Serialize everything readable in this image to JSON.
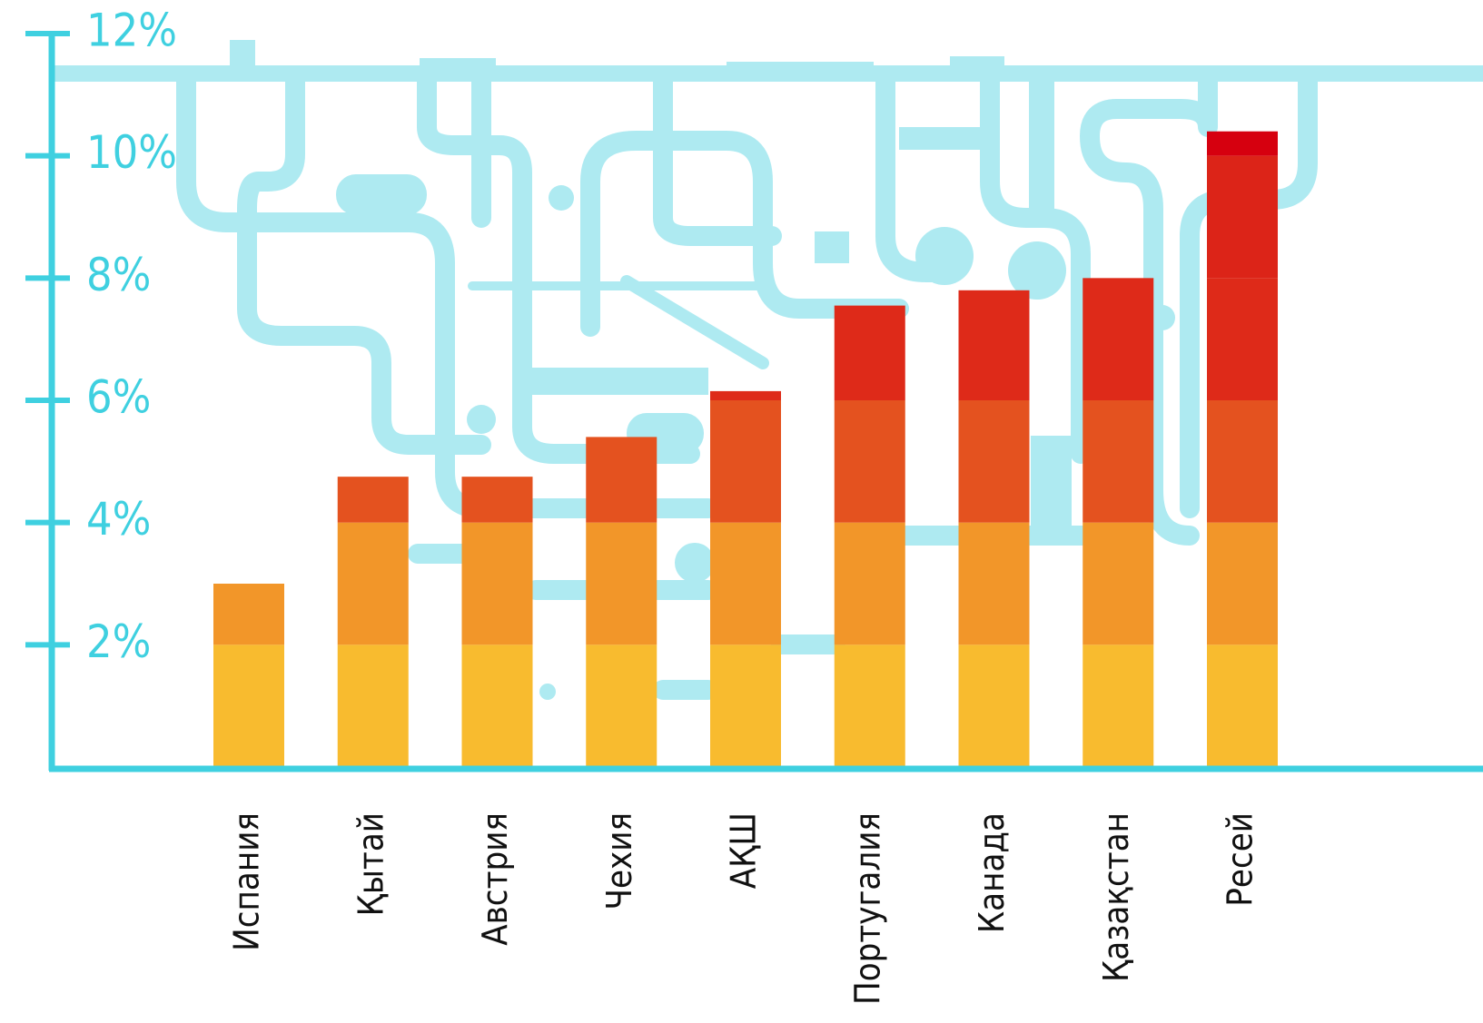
{
  "chart_data": {
    "type": "bar",
    "categories": [
      "Испания",
      "Қытай",
      "Австрия",
      "Чехия",
      "АҚШ",
      "Португалия",
      "Канада",
      "Қазақстан",
      "Ресей"
    ],
    "values": [
      3.0,
      4.75,
      4.75,
      5.4,
      6.15,
      7.55,
      7.8,
      8.0,
      10.4
    ],
    "ylim": [
      0,
      12
    ],
    "yticks": [
      {
        "value": 2,
        "label": "2%"
      },
      {
        "value": 4,
        "label": "4%"
      },
      {
        "value": 6,
        "label": "6%"
      },
      {
        "value": 8,
        "label": "8%"
      },
      {
        "value": 10,
        "label": "10%"
      },
      {
        "value": 12,
        "label": "12%"
      }
    ],
    "band_colors": [
      "#f8bb2f",
      "#f29629",
      "#e4521f",
      "#de2a19",
      "#dc2418",
      "#d6000f"
    ]
  }
}
